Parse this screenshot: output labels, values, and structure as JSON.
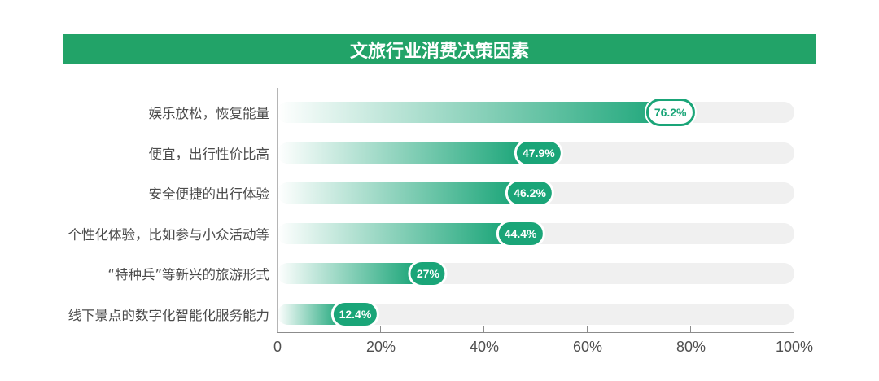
{
  "title_banner": {
    "label": "文旅行业消费决策因素",
    "background": "#22a368",
    "text_color": "#ffffff"
  },
  "colors": {
    "bar_green": "#1aa578",
    "bar_gradient_start": "#ffffff",
    "track": "#f0f0f0",
    "axis_line": "#8c8c8c",
    "category_label": "#4b4b4b",
    "tick_label": "#4f4f4f",
    "pill_solid_text": "#ffffff",
    "pill_outline_text": "#1aa578"
  },
  "chart_data": {
    "type": "bar",
    "orientation": "horizontal",
    "title": "文旅行业消费决策因素",
    "categories": [
      "娱乐放松，恢复能量",
      "便宜，出行性价比高",
      "安全便捷的出行体验",
      "个性化体验，比如参与小众活动等",
      "“特种兵”等新兴的旅游形式",
      "线下景点的数字化智能化服务能力"
    ],
    "values": [
      76.2,
      47.9,
      46.2,
      44.4,
      27,
      12.4
    ],
    "value_labels": [
      "76.2%",
      "47.9%",
      "46.2%",
      "44.4%",
      "27%",
      "12.4%"
    ],
    "pill_styles": [
      "outline",
      "solid",
      "solid",
      "solid",
      "solid",
      "solid"
    ],
    "xlim": [
      0,
      100
    ],
    "x_tick_labels": [
      "0",
      "20%",
      "40%",
      "60%",
      "80%",
      "100%"
    ],
    "x_tick_values": [
      0,
      20,
      40,
      60,
      80,
      100
    ],
    "grid": false,
    "legend": false
  }
}
